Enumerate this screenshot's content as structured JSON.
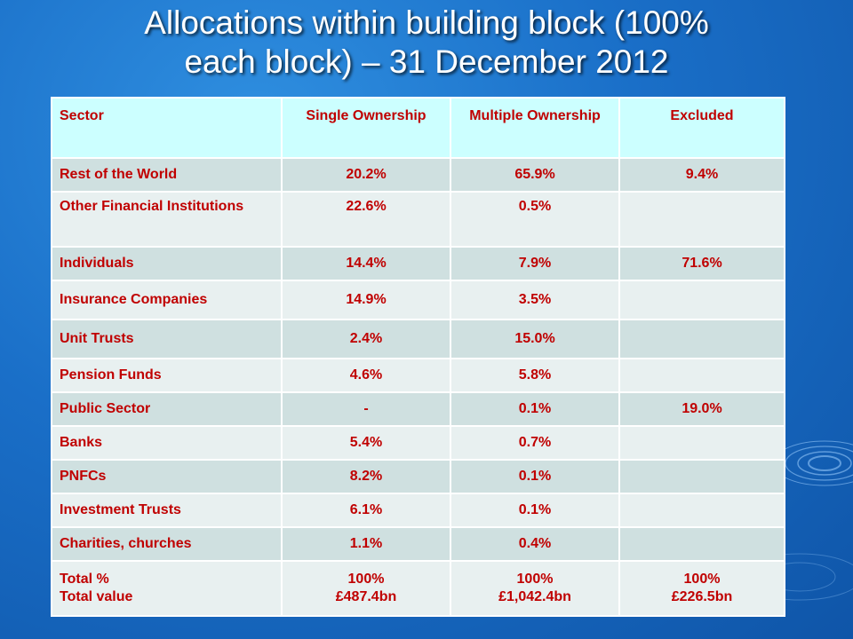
{
  "title": {
    "line1": "Allocations within building block (100%",
    "line2": "each block) – 31 December 2012"
  },
  "table": {
    "headers": [
      "Sector",
      "Single Ownership",
      "Multiple Ownership",
      "Excluded"
    ],
    "rows": [
      {
        "sector": "Rest of the World",
        "single": "20.2%",
        "multiple": "65.9%",
        "excluded": "9.4%"
      },
      {
        "sector": "Other Financial Institutions",
        "single": "22.6%",
        "multiple": "0.5%",
        "excluded": ""
      },
      {
        "sector": "Individuals",
        "single": "14.4%",
        "multiple": "7.9%",
        "excluded": "71.6%"
      },
      {
        "sector": "Insurance Companies",
        "single": "14.9%",
        "multiple": "3.5%",
        "excluded": ""
      },
      {
        "sector": "Unit Trusts",
        "single": "2.4%",
        "multiple": "15.0%",
        "excluded": ""
      },
      {
        "sector": "Pension Funds",
        "single": "4.6%",
        "multiple": "5.8%",
        "excluded": ""
      },
      {
        "sector": "Public Sector",
        "single": "-",
        "multiple": "0.1%",
        "excluded": "19.0%"
      },
      {
        "sector": "Banks",
        "single": "5.4%",
        "multiple": "0.7%",
        "excluded": ""
      },
      {
        "sector": "PNFCs",
        "single": "8.2%",
        "multiple": "0.1%",
        "excluded": ""
      },
      {
        "sector": "Investment Trusts",
        "single": "6.1%",
        "multiple": "0.1%",
        "excluded": ""
      },
      {
        "sector": "Charities, churches",
        "single": "1.1%",
        "multiple": "0.4%",
        "excluded": ""
      }
    ],
    "total": {
      "label_percent": "Total %",
      "label_value": "Total value",
      "single_percent": "100%",
      "single_value": "£487.4bn",
      "multiple_percent": "100%",
      "multiple_value": "£1,042.4bn",
      "excluded_percent": "100%",
      "excluded_value": "£226.5bn"
    }
  },
  "colors": {
    "background": "#1a6fc8",
    "header_fill": "#ccffff",
    "row_dark": "#cfe0e0",
    "row_light": "#e8f0f0",
    "text": "#c00000"
  }
}
